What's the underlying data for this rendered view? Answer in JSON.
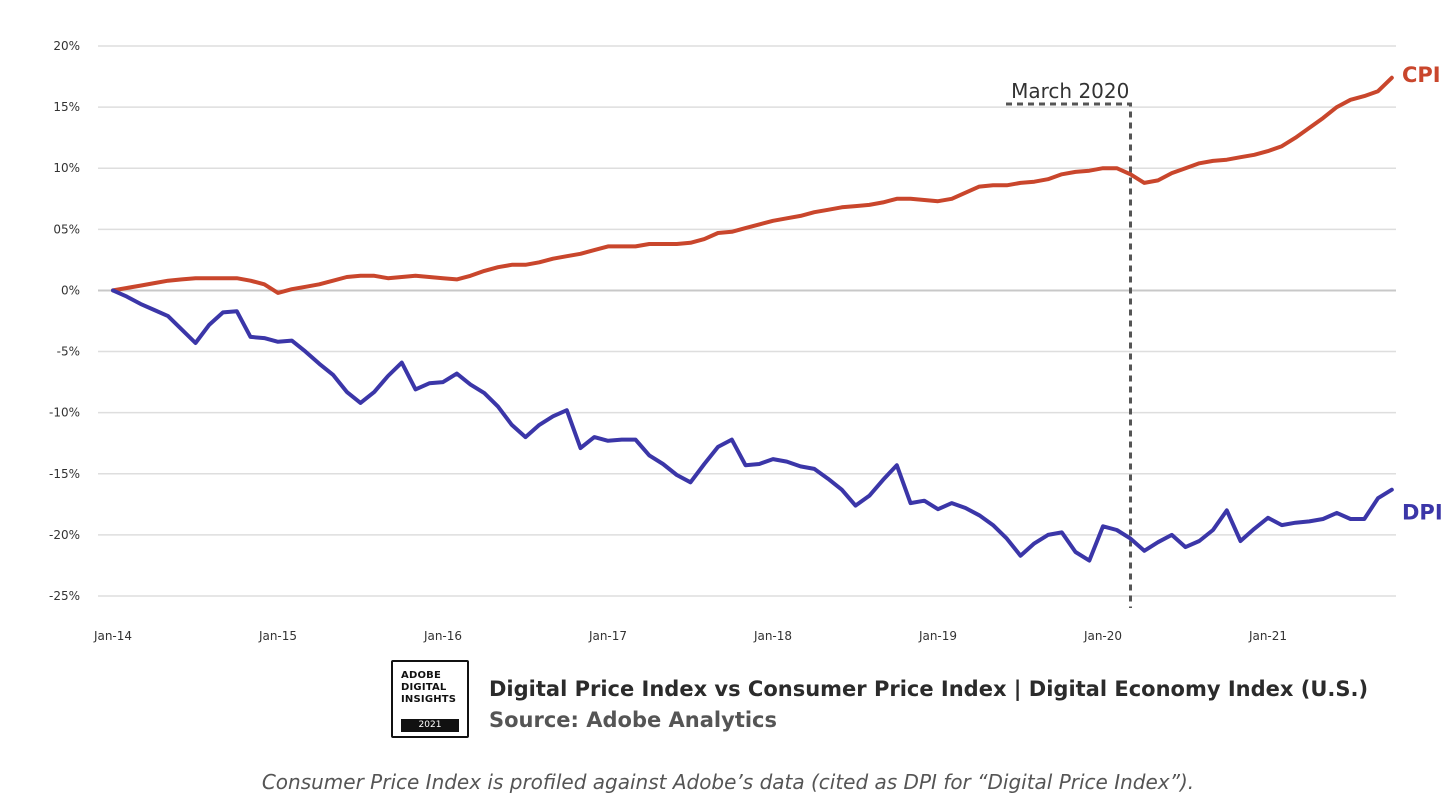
{
  "chart_data": {
    "type": "line",
    "ylim": [
      -25,
      20
    ],
    "y_ticks": [
      "20%",
      "15%",
      "10%",
      "05%",
      "0%",
      "-5%",
      "-10%",
      "-15%",
      "-20%",
      "-25%"
    ],
    "y_tick_values": [
      20,
      15,
      10,
      5,
      0,
      -5,
      -10,
      -15,
      -20,
      -25
    ],
    "x_ticks": [
      "Jan-14",
      "Jan-15",
      "Jan-16",
      "Jan-17",
      "Jan-18",
      "Jan-19",
      "Jan-20",
      "Jan-21"
    ],
    "grid": true,
    "series": [
      {
        "name": "CPI",
        "color": "#c9462c",
        "values": [
          0,
          0.2,
          0.4,
          0.6,
          0.8,
          0.9,
          1.0,
          1.0,
          1.0,
          1.0,
          0.8,
          0.5,
          -0.2,
          0.1,
          0.3,
          0.5,
          0.8,
          1.1,
          1.2,
          1.2,
          1.0,
          1.1,
          1.2,
          1.1,
          1.0,
          0.9,
          1.2,
          1.6,
          1.9,
          2.1,
          2.1,
          2.3,
          2.6,
          2.8,
          3.0,
          3.3,
          3.6,
          3.6,
          3.6,
          3.8,
          3.8,
          3.8,
          3.9,
          4.2,
          4.7,
          4.8,
          5.1,
          5.4,
          5.7,
          5.9,
          6.1,
          6.4,
          6.6,
          6.8,
          6.9,
          7.0,
          7.2,
          7.5,
          7.5,
          7.4,
          7.3,
          7.5,
          8.0,
          8.5,
          8.6,
          8.6,
          8.8,
          8.9,
          9.1,
          9.5,
          9.7,
          9.8,
          10.0,
          10.0,
          9.5,
          8.8,
          9.0,
          9.6,
          10.0,
          10.4,
          10.6,
          10.7,
          10.9,
          11.1,
          11.4,
          11.8,
          12.5,
          13.3,
          14.1,
          15.0,
          15.6,
          15.9,
          16.3,
          17.4
        ]
      },
      {
        "name": "DPI",
        "color": "#3b36a8",
        "values": [
          0,
          -0.5,
          -1.1,
          -1.6,
          -2.1,
          -3.2,
          -4.3,
          -2.8,
          -1.8,
          -1.7,
          -3.8,
          -3.9,
          -4.2,
          -4.1,
          -5.0,
          -6.0,
          -6.9,
          -8.3,
          -9.2,
          -8.3,
          -7.0,
          -5.9,
          -8.1,
          -7.6,
          -7.5,
          -6.8,
          -7.7,
          -8.4,
          -9.5,
          -11.0,
          -12.0,
          -11.0,
          -10.3,
          -9.8,
          -12.9,
          -12.0,
          -12.3,
          -12.2,
          -12.2,
          -13.5,
          -14.2,
          -15.1,
          -15.7,
          -14.2,
          -12.8,
          -12.2,
          -14.3,
          -14.2,
          -13.8,
          -14.0,
          -14.4,
          -14.6,
          -15.4,
          -16.3,
          -17.6,
          -16.8,
          -15.5,
          -14.3,
          -17.4,
          -17.2,
          -17.9,
          -17.4,
          -17.8,
          -18.4,
          -19.2,
          -20.3,
          -21.7,
          -20.7,
          -20.0,
          -19.8,
          -21.4,
          -22.1,
          -19.3,
          -19.6,
          -20.3,
          -21.3,
          -20.6,
          -20.0,
          -21.0,
          -20.5,
          -19.6,
          -18.0,
          -20.5,
          -19.5,
          -18.6,
          -19.2,
          -19.0,
          -18.9,
          -18.7,
          -18.2,
          -18.7,
          -18.7,
          -17.0,
          -16.3
        ]
      }
    ],
    "x_start": "Jan-14",
    "annotation": {
      "label": "March 2020",
      "x_index": 74
    }
  },
  "footer": {
    "badge_lines": [
      "ADOBE",
      "DIGITAL",
      "INSIGHTS"
    ],
    "badge_year": "2021",
    "title": "Digital Price Index vs Consumer Price Index | Digital Economy Index (U.S.)",
    "source": "Source: Adobe Analytics",
    "caption": "Consumer Price Index is profiled against Adobe’s data (cited as DPI for “Digital Price Index”)."
  }
}
